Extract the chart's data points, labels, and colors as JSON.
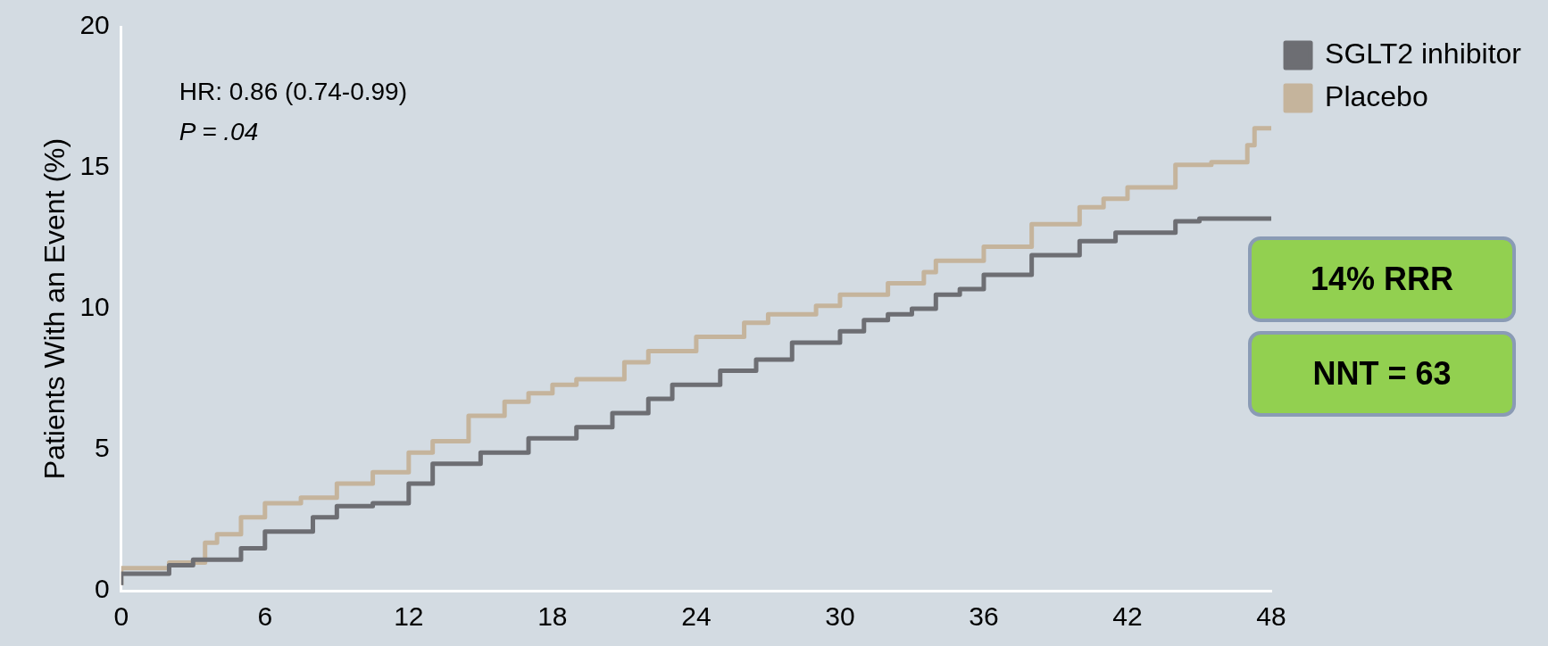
{
  "chart_data": {
    "type": "step",
    "x": [
      0,
      2,
      3.5,
      4,
      5,
      6,
      7.5,
      9,
      10.5,
      12,
      13,
      14.5,
      16,
      17,
      18,
      19,
      21,
      22,
      24,
      26,
      27,
      29,
      30,
      32,
      33.5,
      34,
      36,
      38,
      40,
      41,
      42,
      44,
      45.5,
      47,
      47.3,
      48
    ],
    "ylim": [
      0,
      20
    ],
    "yticks": [
      0,
      5,
      10,
      15,
      20
    ],
    "xlim": [
      0,
      48
    ],
    "xticks": [
      0,
      6,
      12,
      18,
      24,
      30,
      36,
      42,
      48
    ],
    "ylabel": "Patients With an Event (%)",
    "series": [
      {
        "name": "SGLT2 inhibitor",
        "color": "#6d6e73",
        "x": [
          0,
          2,
          3,
          4,
          5,
          6,
          8,
          9,
          10.5,
          12,
          13,
          15,
          17,
          19,
          20.5,
          22,
          23,
          25,
          26.5,
          28,
          30,
          31,
          32,
          33,
          34,
          35,
          36,
          38,
          40,
          41.5,
          44,
          45,
          48
        ],
        "values": [
          0.2,
          0.6,
          0.9,
          1.1,
          1.1,
          1.5,
          2.1,
          2.6,
          3.0,
          3.1,
          3.8,
          4.5,
          4.9,
          5.4,
          5.8,
          6.3,
          6.8,
          7.3,
          7.8,
          8.2,
          8.8,
          9.2,
          9.6,
          9.8,
          10.0,
          10.5,
          10.7,
          11.2,
          11.9,
          12.4,
          12.7,
          13.1,
          13.2
        ]
      },
      {
        "name": "Placebo",
        "color": "#c5b49c",
        "values": [
          0.2,
          0.8,
          1.0,
          1.7,
          2.0,
          2.6,
          3.1,
          3.3,
          3.8,
          4.2,
          4.9,
          5.3,
          6.2,
          6.7,
          7.0,
          7.3,
          7.5,
          8.1,
          8.5,
          9.0,
          9.5,
          9.8,
          10.1,
          10.5,
          10.9,
          11.3,
          11.7,
          12.2,
          13.0,
          13.6,
          13.9,
          14.3,
          15.1,
          15.2,
          15.8,
          16.4
        ]
      }
    ],
    "legend": "top right",
    "grid": false,
    "annotations": [
      "HR: 0.86 (0.74-0.99)",
      "P = .04",
      "14% RRR",
      "NNT = 63"
    ]
  }
}
